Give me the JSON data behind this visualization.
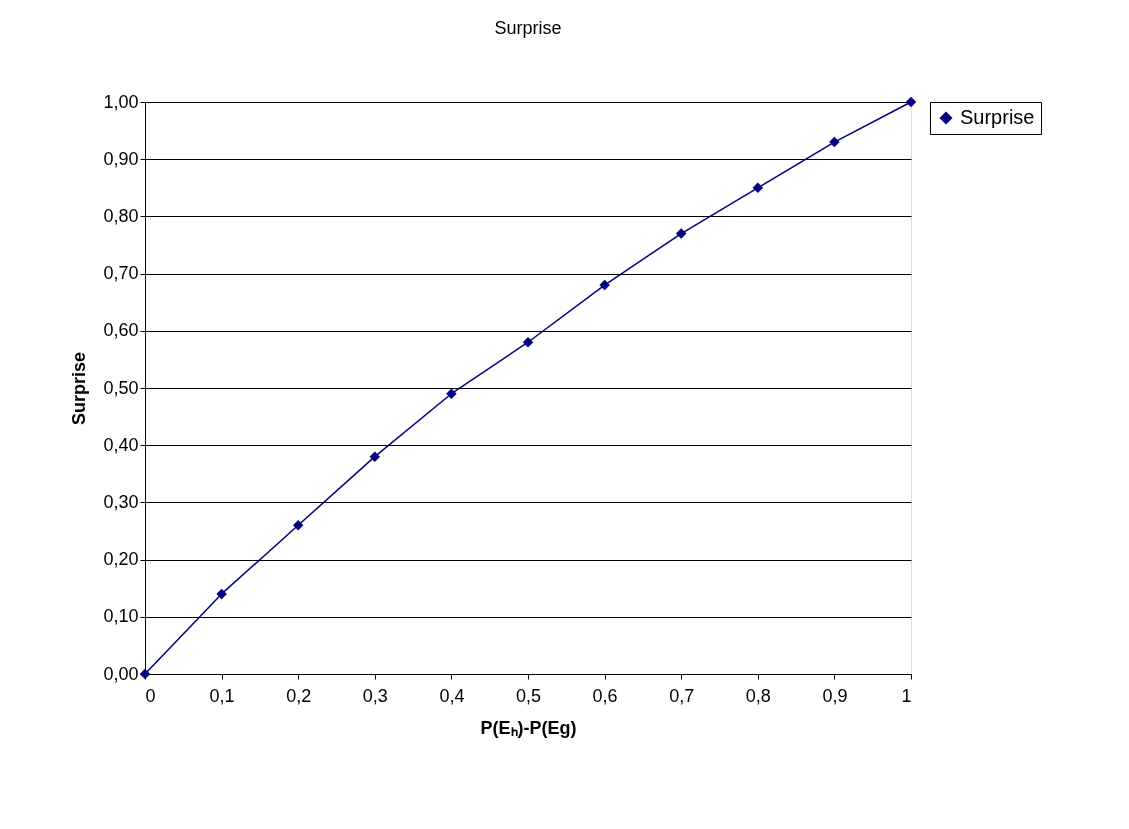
{
  "chart_data": {
    "type": "line",
    "title": "Surprise",
    "xlabel": "P(Eₕ)-P(Eg)",
    "ylabel": "Surprise",
    "x": [
      0,
      0.1,
      0.2,
      0.3,
      0.4,
      0.5,
      0.6,
      0.7,
      0.8,
      0.9,
      1
    ],
    "series": [
      {
        "name": "Surprise",
        "color": "#000080",
        "values": [
          0,
          0.14,
          0.26,
          0.38,
          0.49,
          0.58,
          0.68,
          0.77,
          0.85,
          0.93,
          1
        ]
      }
    ],
    "xlim": [
      0,
      1
    ],
    "xticks": [
      0,
      {
        "value": 0.1,
        "label": "0,1"
      },
      {
        "value": 0.2,
        "label": "0,2"
      },
      {
        "value": 0.3,
        "label": "0,3"
      },
      {
        "value": 0.4,
        "label": "0,4"
      },
      {
        "value": 0.5,
        "label": "0,5"
      },
      {
        "value": 0.6,
        "label": "0,6"
      },
      {
        "value": 0.7,
        "label": "0,7"
      },
      {
        "value": 0.8,
        "label": "0,8"
      },
      {
        "value": 0.9,
        "label": "0,9"
      },
      1
    ],
    "ylim": [
      0,
      1
    ],
    "yticks": [
      {
        "value": 0,
        "label": "0,00"
      },
      {
        "value": 0.1,
        "label": "0,10"
      },
      {
        "value": 0.2,
        "label": "0,20"
      },
      {
        "value": 0.3,
        "label": "0,30"
      },
      {
        "value": 0.4,
        "label": "0,40"
      },
      {
        "value": 0.5,
        "label": "0,50"
      },
      {
        "value": 0.6,
        "label": "0,60"
      },
      {
        "value": 0.7,
        "label": "0,70"
      },
      {
        "value": 0.8,
        "label": "0,80"
      },
      {
        "value": 0.9,
        "label": "0,90"
      },
      {
        "value": 1,
        "label": "1,00"
      }
    ],
    "grid": "y",
    "legend": "right",
    "marker": "diamond",
    "line_style": "solid"
  }
}
